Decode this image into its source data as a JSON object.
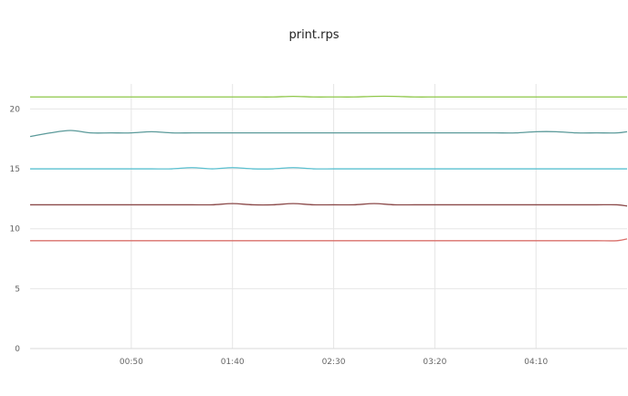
{
  "chart_data": {
    "type": "line",
    "title": "print.rps",
    "xlabel": "",
    "ylabel": "",
    "ylim": [
      0,
      23
    ],
    "yticks": [
      0,
      5,
      10,
      15,
      20
    ],
    "xlim": [
      "00:00",
      "04:55"
    ],
    "xticks": [
      "00:50",
      "01:40",
      "02:30",
      "03:20",
      "04:10"
    ],
    "grid": true,
    "legend": "none",
    "x": [
      "00:00",
      "00:10",
      "00:20",
      "00:30",
      "00:40",
      "00:50",
      "01:00",
      "01:10",
      "01:20",
      "01:30",
      "01:40",
      "01:50",
      "02:00",
      "02:10",
      "02:20",
      "02:30",
      "02:40",
      "02:50",
      "03:00",
      "03:10",
      "03:20",
      "03:30",
      "03:40",
      "03:50",
      "04:00",
      "04:10",
      "04:20",
      "04:30",
      "04:40",
      "04:50",
      "04:55"
    ],
    "series": [
      {
        "color": "#8fc74a",
        "values": [
          21,
          21,
          21,
          21,
          21,
          21,
          21,
          21,
          21,
          21,
          21,
          21,
          21,
          21.05,
          21,
          21,
          21,
          21.05,
          21.05,
          21,
          21,
          21,
          21,
          21,
          21,
          21,
          21,
          21,
          21,
          21,
          21
        ]
      },
      {
        "color": "#5b9a9a",
        "values": [
          17.7,
          18,
          18.2,
          18,
          18,
          18,
          18.1,
          18,
          18,
          18,
          18,
          18,
          18,
          18,
          18,
          18,
          18,
          18,
          18,
          18,
          18,
          18,
          18,
          18,
          18,
          18.1,
          18.1,
          18,
          18,
          18,
          18.1
        ]
      },
      {
        "color": "#5bc0d0",
        "values": [
          15,
          15,
          15,
          15,
          15,
          15,
          15,
          15,
          15.1,
          15,
          15.1,
          15,
          15,
          15.1,
          15,
          15,
          15,
          15,
          15,
          15,
          15,
          15,
          15,
          15,
          15,
          15,
          15,
          15,
          15,
          15,
          15
        ]
      },
      {
        "color": "#8b4a4a",
        "values": [
          12,
          12,
          12,
          12,
          12,
          12,
          12,
          12,
          12,
          12,
          12.1,
          12,
          12,
          12.1,
          12,
          12,
          12,
          12.1,
          12,
          12,
          12,
          12,
          12,
          12,
          12,
          12,
          12,
          12,
          12,
          12,
          11.9
        ]
      },
      {
        "color": "#d9706b",
        "values": [
          9,
          9,
          9,
          9,
          9,
          9,
          9,
          9,
          9,
          9,
          9,
          9,
          9,
          9,
          9,
          9,
          9,
          9,
          9,
          9,
          9,
          9,
          9,
          9,
          9,
          9,
          9,
          9,
          9,
          9,
          9.15
        ]
      }
    ]
  }
}
